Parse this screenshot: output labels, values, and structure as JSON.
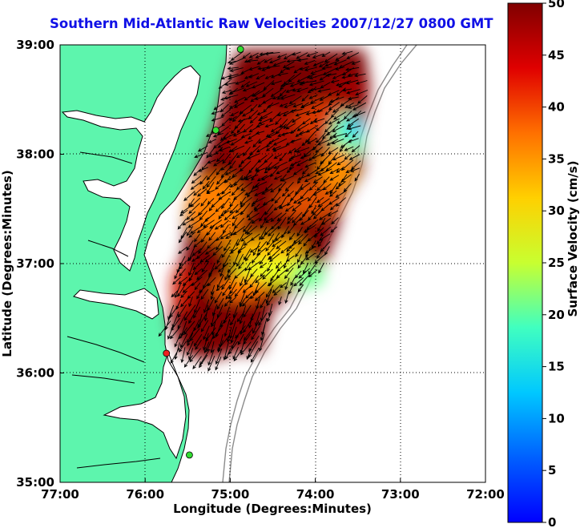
{
  "title": "Southern Mid-Atlantic Raw Velocities 2007/12/27 0800 GMT",
  "x_axis": {
    "label": "Longitude (Degrees:Minutes)",
    "ticks": [
      "77:00",
      "76:00",
      "75:00",
      "74:00",
      "73:00",
      "72:00"
    ]
  },
  "y_axis": {
    "label": "Latitude (Degrees:Minutes)",
    "ticks": [
      "39:00",
      "38:00",
      "37:00",
      "36:00",
      "35:00"
    ]
  },
  "colorbar": {
    "label": "Surface Velocity (cm/s)",
    "ticks": [
      "50",
      "45",
      "40",
      "35",
      "30",
      "25",
      "20",
      "15",
      "10",
      "5",
      "0"
    ],
    "range": [
      0,
      50
    ],
    "colormap": "jet"
  },
  "map": {
    "lon_range": [
      -77,
      -72
    ],
    "lat_range": [
      35,
      39
    ],
    "land_color": "#5df5ad",
    "water_color": "#ffffff",
    "coast_color": "#000000",
    "isobath_color": "#8c8c8c",
    "grid": "dotted",
    "stations": [
      {
        "color": "#33dd33",
        "lon": -74.88,
        "lat": 38.96
      },
      {
        "color": "#33dd33",
        "lon": -75.17,
        "lat": 38.22
      },
      {
        "color": "#ee2222",
        "lon": -75.75,
        "lat": 36.18
      },
      {
        "color": "#33dd33",
        "lon": -75.48,
        "lat": 35.25
      }
    ]
  }
}
